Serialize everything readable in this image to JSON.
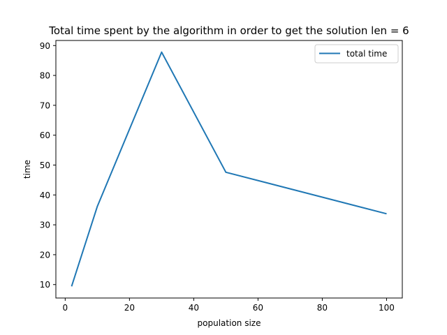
{
  "chart_data": {
    "type": "line",
    "title": "Total time spent by the algorithm in order to get the solution len = 6",
    "xlabel": "population size",
    "ylabel": "time",
    "xlim": [
      -2.9,
      104.9
    ],
    "ylim": [
      5.5,
      91.7
    ],
    "xticks": [
      "0",
      "20",
      "40",
      "60",
      "80",
      "100"
    ],
    "yticks": [
      "10",
      "20",
      "30",
      "40",
      "50",
      "60",
      "70",
      "80",
      "90"
    ],
    "grid": false,
    "legend_position": "top-right",
    "series": [
      {
        "name": "total time",
        "color": "#1f77b4",
        "x": [
          2,
          10,
          30,
          50,
          100
        ],
        "y": [
          9.4,
          36.2,
          87.8,
          47.6,
          33.7
        ]
      }
    ]
  }
}
